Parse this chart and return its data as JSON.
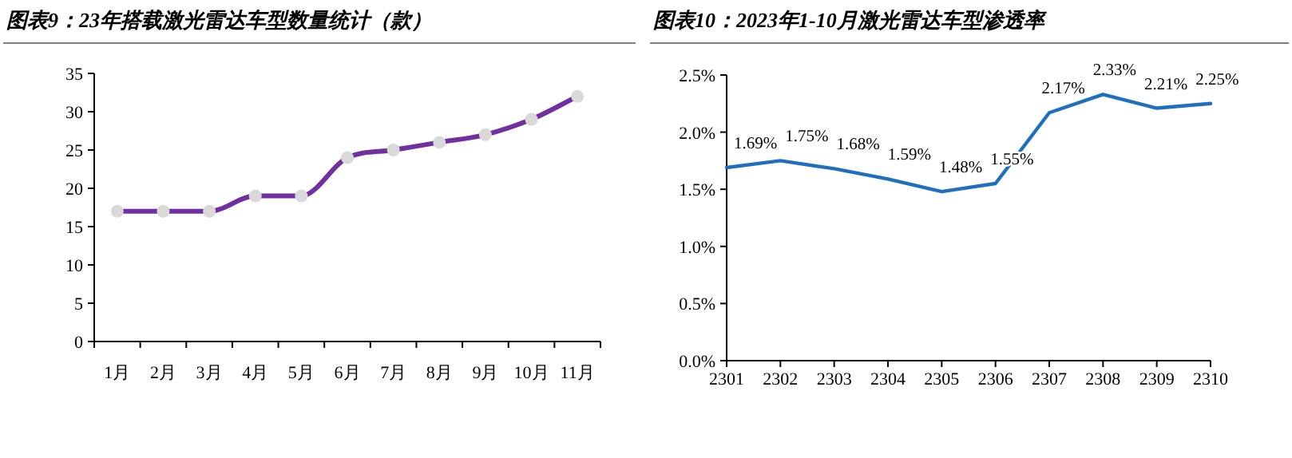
{
  "chart_data": [
    {
      "type": "line",
      "title": "图表9：23年搭载激光雷达车型数量统计（款）",
      "categories": [
        "1月",
        "2月",
        "3月",
        "4月",
        "5月",
        "6月",
        "7月",
        "8月",
        "9月",
        "10月",
        "11月"
      ],
      "values": [
        17,
        17,
        17,
        19,
        19,
        24,
        25,
        26,
        27,
        29,
        32
      ],
      "color": "#7030a0",
      "ylim": [
        0,
        35
      ],
      "yticks": [
        0,
        5,
        10,
        15,
        20,
        25,
        30,
        35
      ],
      "marker": "circle",
      "line_style": "solid",
      "grid": false
    },
    {
      "type": "line",
      "title": "图表10：2023年1-10月激光雷达车型渗透率",
      "categories": [
        "2301",
        "2302",
        "2303",
        "2304",
        "2305",
        "2306",
        "2307",
        "2308",
        "2309",
        "2310"
      ],
      "values": [
        1.69,
        1.75,
        1.68,
        1.59,
        1.48,
        1.55,
        2.17,
        2.33,
        2.21,
        2.25
      ],
      "value_labels": [
        "1.69%",
        "1.75%",
        "1.68%",
        "1.59%",
        "1.48%",
        "1.55%",
        "2.17%",
        "2.33%",
        "2.21%",
        "2.25%"
      ],
      "color": "#1f6fbf",
      "ylim": [
        0,
        2.5
      ],
      "yticks": [
        {
          "value": 0,
          "label": "0.0%"
        },
        {
          "value": 0.5,
          "label": "0.5%"
        },
        {
          "value": 1,
          "label": "1.0%"
        },
        {
          "value": 1.5,
          "label": "1.5%"
        },
        {
          "value": 2,
          "label": "2.0%"
        },
        {
          "value": 2.5,
          "label": "2.5%"
        }
      ],
      "marker": "none",
      "line_style": "solid",
      "grid": false
    }
  ]
}
